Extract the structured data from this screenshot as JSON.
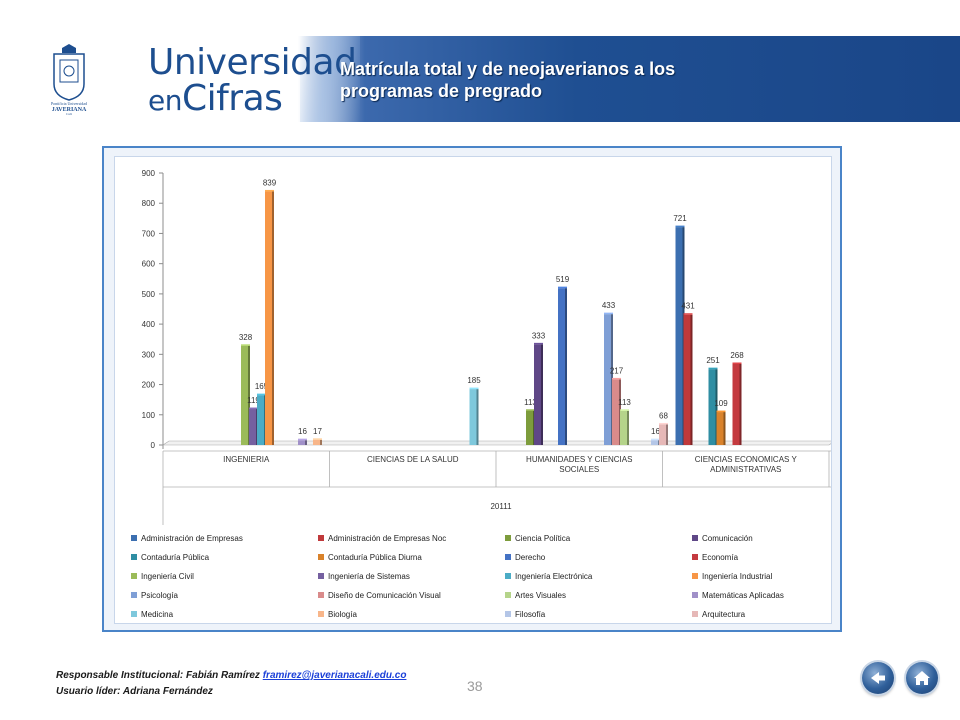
{
  "header": {
    "brand_line1": "Universidad",
    "brand_line2a": "en",
    "brand_line2b": "Cifras",
    "crest_text_top": "Pontificia Universidad",
    "crest_text_bottom": "JAVERIANA",
    "crest_text_city": "Cali",
    "title": "Matrícula total y de neojaverianos a los programas de pregrado"
  },
  "chart_data": {
    "type": "bar",
    "ylim": [
      0,
      900
    ],
    "yticks": [
      0,
      100,
      200,
      300,
      400,
      500,
      600,
      700,
      800,
      900
    ],
    "groups": [
      "INGENIERIA",
      "CIENCIAS DE LA SALUD",
      "HUMANIDADES Y CIENCIAS SOCIALES",
      "CIENCIAS ECONOMICAS Y ADMINISTRATIVAS"
    ],
    "period": "20111",
    "series": [
      {
        "name": "Administración de Empresas",
        "color": "#3c6fb0",
        "group": "CIENCIAS ECONOMICAS Y ADMINISTRATIVAS",
        "value": 721
      },
      {
        "name": "Administración de Empresas Noc",
        "color": "#c0393b",
        "group": "CIENCIAS ECONOMICAS Y ADMINISTRATIVAS",
        "value": 431
      },
      {
        "name": "Ciencia Política",
        "color": "#7d9c3c",
        "group": "HUMANIDADES Y CIENCIAS SOCIALES",
        "value": 113
      },
      {
        "name": "Comunicación",
        "color": "#5f4787",
        "group": "HUMANIDADES Y CIENCIAS SOCIALES",
        "value": 333
      },
      {
        "name": "Contaduría Pública",
        "color": "#2f8ea3",
        "group": "CIENCIAS ECONOMICAS Y ADMINISTRATIVAS",
        "value": 251
      },
      {
        "name": "Contaduría Pública Diurna",
        "color": "#d9822b",
        "group": "CIENCIAS ECONOMICAS Y ADMINISTRATIVAS",
        "value": 109
      },
      {
        "name": "Derecho",
        "color": "#4472c4",
        "group": "HUMANIDADES Y CIENCIAS SOCIALES",
        "value": 519
      },
      {
        "name": "Economía",
        "color": "#c43a3f",
        "group": "CIENCIAS ECONOMICAS Y ADMINISTRATIVAS",
        "value": 268
      },
      {
        "name": "Ingeniería Civil",
        "color": "#9bbb59",
        "group": "INGENIERIA",
        "value": 328
      },
      {
        "name": "Ingeniería de Sistemas",
        "color": "#7560a0",
        "group": "INGENIERIA",
        "value": 119
      },
      {
        "name": "Ingeniería Electrónica",
        "color": "#4bacc6",
        "group": "INGENIERIA",
        "value": 165
      },
      {
        "name": "Ingeniería Industrial",
        "color": "#f79646",
        "group": "INGENIERIA",
        "value": 839
      },
      {
        "name": "Psicología",
        "color": "#7f9fd6",
        "group": "HUMANIDADES Y CIENCIAS SOCIALES",
        "value": 433
      },
      {
        "name": "Diseño de Comunicación Visual",
        "color": "#d98b8b",
        "group": "HUMANIDADES Y CIENCIAS SOCIALES",
        "value": 217
      },
      {
        "name": "Artes Visuales",
        "color": "#b5d48a",
        "group": "HUMANIDADES Y CIENCIAS SOCIALES",
        "value": 113
      },
      {
        "name": "Matemáticas Aplicadas",
        "color": "#a090c8",
        "group": "INGENIERIA",
        "value": 16
      },
      {
        "name": "Medicina",
        "color": "#7ec8dc",
        "group": "CIENCIAS DE LA SALUD",
        "value": 185
      },
      {
        "name": "Biología",
        "color": "#f8b68a",
        "group": "INGENIERIA",
        "value": 17
      },
      {
        "name": "Filosofía",
        "color": "#b4c6e7",
        "group": "HUMANIDADES Y CIENCIAS SOCIALES",
        "value": 16
      },
      {
        "name": "Arquitectura",
        "color": "#e6b8b7",
        "group": "HUMANIDADES Y CIENCIAS SOCIALES",
        "value": 68
      }
    ],
    "legend_position": "bottom",
    "grid": false
  },
  "footer": {
    "responsable_label": "Responsable Institucional: Fabián Ramírez",
    "email": "framirez@javerianacali.edu.co",
    "usuario_label": "Usuario líder: Adriana Fernández",
    "page_number": "38"
  },
  "nav": {
    "back_icon": "back-arrow-icon",
    "home_icon": "home-icon"
  }
}
